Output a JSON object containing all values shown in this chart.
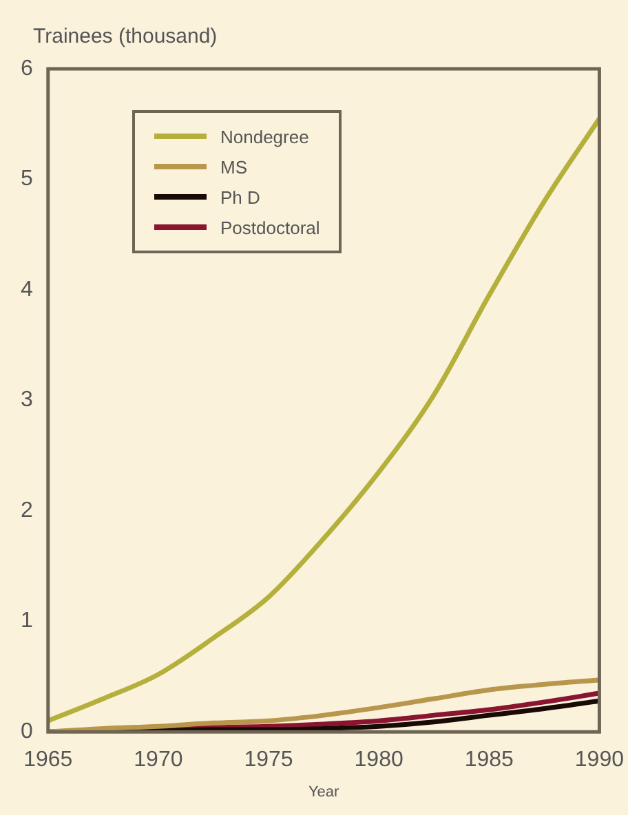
{
  "chart_data": {
    "type": "line",
    "ylabel": "Trainees (thousand)",
    "xlabel": "Year",
    "x": [
      1965,
      1967.5,
      1970,
      1972.5,
      1975,
      1977.5,
      1980,
      1982.5,
      1985,
      1987.5,
      1990
    ],
    "series": [
      {
        "name": "Nondegree",
        "color": "#b5b03c",
        "values": [
          0.1,
          0.3,
          0.52,
          0.85,
          1.22,
          1.75,
          2.35,
          3.05,
          3.95,
          4.8,
          5.55
        ]
      },
      {
        "name": "MS",
        "color": "#b8964c",
        "values": [
          0,
          0.03,
          0.05,
          0.08,
          0.1,
          0.15,
          0.22,
          0.3,
          0.38,
          0.43,
          0.47
        ]
      },
      {
        "name": "Ph D",
        "color": "#1a0a05",
        "values": [
          0,
          0.01,
          0.01,
          0.02,
          0.02,
          0.03,
          0.05,
          0.09,
          0.15,
          0.21,
          0.28
        ]
      },
      {
        "name": "Postdoctoral",
        "color": "#8a1530",
        "values": [
          0,
          0.01,
          0.02,
          0.04,
          0.05,
          0.07,
          0.1,
          0.15,
          0.2,
          0.27,
          0.35
        ]
      }
    ],
    "xlim": [
      1965,
      1990
    ],
    "xticks": [
      1965,
      1970,
      1975,
      1980,
      1985,
      1990
    ],
    "ylim": [
      0,
      6
    ],
    "yticks": [
      0,
      1,
      2,
      3,
      4,
      5,
      6
    ],
    "grid": false,
    "legend": "top left",
    "marker": "none",
    "line_style": "solid"
  }
}
